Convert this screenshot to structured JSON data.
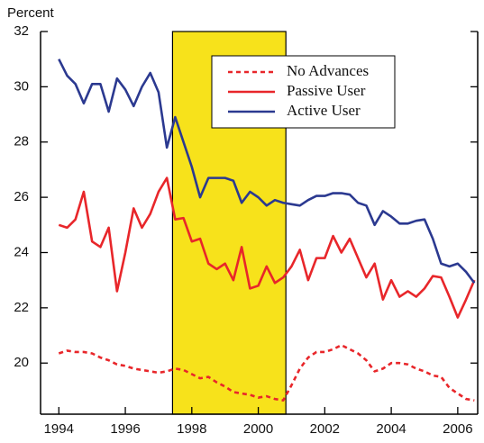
{
  "chart_data": {
    "type": "line",
    "y_axis_label": "Percent",
    "x": [
      1994,
      1994.25,
      1994.5,
      1994.75,
      1995,
      1995.25,
      1995.5,
      1995.75,
      1996,
      1996.25,
      1996.5,
      1996.75,
      1997,
      1997.25,
      1997.5,
      1997.75,
      1998,
      1998.25,
      1998.5,
      1998.75,
      1999,
      1999.25,
      1999.5,
      1999.75,
      2000,
      2000.25,
      2000.5,
      2000.75,
      2001,
      2001.25,
      2001.5,
      2001.75,
      2002,
      2002.25,
      2002.5,
      2002.75,
      2003,
      2003.25,
      2003.5,
      2003.75,
      2004,
      2004.25,
      2004.5,
      2004.75,
      2005,
      2005.25,
      2005.5,
      2005.75,
      2006,
      2006.25,
      2006.5
    ],
    "series": [
      {
        "name": "No Advances",
        "color": "#e8262a",
        "dashed": true,
        "values": [
          20.35,
          20.45,
          20.4,
          20.4,
          20.35,
          20.2,
          20.1,
          19.95,
          19.9,
          19.8,
          19.75,
          19.7,
          19.65,
          19.7,
          19.8,
          19.75,
          19.6,
          19.45,
          19.5,
          19.3,
          19.15,
          18.95,
          18.9,
          18.85,
          18.75,
          18.8,
          18.7,
          18.65,
          19.2,
          19.8,
          20.2,
          20.4,
          20.4,
          20.5,
          20.65,
          20.5,
          20.35,
          20.1,
          19.7,
          19.8,
          20.0,
          20.0,
          19.95,
          19.8,
          19.7,
          19.55,
          19.5,
          19.1,
          18.9,
          18.7,
          18.65
        ]
      },
      {
        "name": "Passive User",
        "color": "#e8262a",
        "dashed": false,
        "values": [
          25.0,
          24.9,
          25.2,
          26.2,
          24.4,
          24.2,
          24.9,
          22.6,
          24.0,
          25.6,
          24.9,
          25.4,
          26.2,
          26.7,
          25.2,
          25.25,
          24.4,
          24.5,
          23.6,
          23.4,
          23.6,
          23.0,
          24.2,
          22.7,
          22.8,
          23.5,
          22.9,
          23.1,
          23.5,
          24.1,
          23.0,
          23.8,
          23.8,
          24.6,
          24.0,
          24.5,
          23.8,
          23.1,
          23.6,
          22.3,
          23.0,
          22.4,
          22.6,
          22.4,
          22.7,
          23.15,
          23.1,
          22.4,
          21.65,
          22.3,
          23.0
        ]
      },
      {
        "name": "Active User",
        "color": "#2b3990",
        "dashed": false,
        "values": [
          31.0,
          30.4,
          30.1,
          29.4,
          30.1,
          30.1,
          29.1,
          30.3,
          29.9,
          29.3,
          30.0,
          30.5,
          29.8,
          27.8,
          28.9,
          28.0,
          27.1,
          26.0,
          26.7,
          26.7,
          26.7,
          26.6,
          25.8,
          26.2,
          26.0,
          25.7,
          25.9,
          25.8,
          25.75,
          25.7,
          25.9,
          26.05,
          26.05,
          26.15,
          26.15,
          26.1,
          25.8,
          25.7,
          25.0,
          25.5,
          25.3,
          25.05,
          25.05,
          25.15,
          25.2,
          24.5,
          23.6,
          23.5,
          23.6,
          23.3,
          22.9
        ]
      }
    ],
    "shaded_region": [
      1997.42,
      2000.83
    ],
    "shaded_color": "#f7e21b",
    "xlim": [
      1993.45,
      2006.6
    ],
    "xticks": [
      1994,
      1996,
      1998,
      2000,
      2002,
      2004,
      2006
    ],
    "ylim": [
      18.15,
      32
    ],
    "yticks": [
      20,
      22,
      24,
      26,
      28,
      30,
      32
    ],
    "legend": "upper-right",
    "grid": false
  }
}
